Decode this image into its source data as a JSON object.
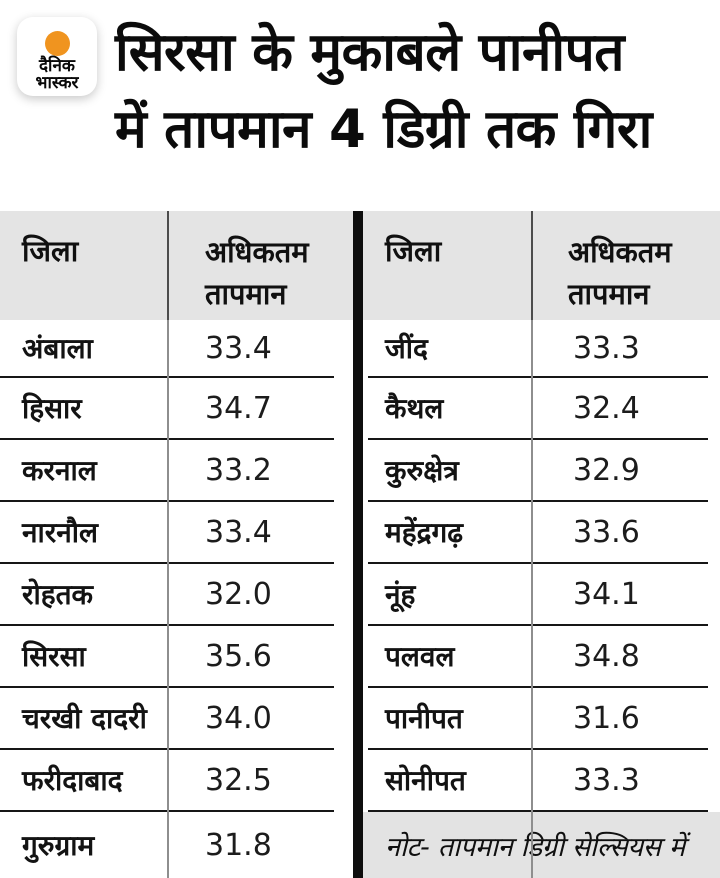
{
  "brand": {
    "name": "Dainik Bhaskar",
    "logo_line1": "दैनिक",
    "logo_line2": "भास्कर",
    "sun_color": "#f0941f"
  },
  "title": {
    "line1": "सिरसा के मुकाबले पानीपत",
    "line2": "में तापमान 4 डिग्री तक गिरा"
  },
  "table_left": {
    "header_district": "जिला",
    "header_temp": "अधिकतम तापमान",
    "rows": [
      {
        "district": "अंबाला",
        "temp": "33.4"
      },
      {
        "district": "हिसार",
        "temp": "34.7"
      },
      {
        "district": "करनाल",
        "temp": "33.2"
      },
      {
        "district": "नारनौल",
        "temp": "33.4"
      },
      {
        "district": "रोहतक",
        "temp": "32.0"
      },
      {
        "district": "सिरसा",
        "temp": "35.6"
      },
      {
        "district": "चरखी दादरी",
        "temp": "34.0"
      },
      {
        "district": "फरीदाबाद",
        "temp": "32.5"
      },
      {
        "district": "गुरुग्राम",
        "temp": "31.8"
      }
    ]
  },
  "table_right": {
    "header_district": "जिला",
    "header_temp": "अधिकतम तापमान",
    "rows": [
      {
        "district": "जींद",
        "temp": "33.3"
      },
      {
        "district": "कैथल",
        "temp": "32.4"
      },
      {
        "district": "कुरुक्षेत्र",
        "temp": "32.9"
      },
      {
        "district": "महेंद्रगढ़",
        "temp": "33.6"
      },
      {
        "district": "नूंह",
        "temp": "34.1"
      },
      {
        "district": "पलवल",
        "temp": "34.8"
      },
      {
        "district": "पानीपत",
        "temp": "31.6"
      },
      {
        "district": "सोनीपत",
        "temp": "33.3"
      }
    ]
  },
  "note": "नोट- तापमान डिग्री सेल्सियस में",
  "colors": {
    "header_bg": "#e4e4e4",
    "note_bg": "#e3e3e3",
    "row_line": "#161616",
    "center_divider": "#0e0e0e",
    "column_divider_header": "#4c4c4c",
    "column_divider_body": "#8e8e8e",
    "title_text": "#0b0b0b",
    "logo_sun": "#f0941f"
  },
  "chart_data": {
    "type": "table",
    "title": "सिरसा के मुकाबले पानीपत में तापमान 4 डिग्री तक गिरा",
    "columns": [
      "जिला",
      "अधिकतम तापमान"
    ],
    "categories": [
      "अंबाला",
      "हिसार",
      "करनाल",
      "नारनौल",
      "रोहतक",
      "सिरसा",
      "चरखी दादरी",
      "फरीदाबाद",
      "गुरुग्राम",
      "जींद",
      "कैथल",
      "कुरुक्षेत्र",
      "महेंद्रगढ़",
      "नूंह",
      "पलवल",
      "पानीपत",
      "सोनीपत"
    ],
    "values": [
      33.4,
      34.7,
      33.2,
      33.4,
      32.0,
      35.6,
      34.0,
      32.5,
      31.8,
      33.3,
      32.4,
      32.9,
      33.6,
      34.1,
      34.8,
      31.6,
      33.3
    ],
    "units": "डिग्री सेल्सियस",
    "note": "नोट- तापमान डिग्री सेल्सियस में",
    "layout": "two side-by-side tables: first 9 districts left, last 8 districts right"
  }
}
